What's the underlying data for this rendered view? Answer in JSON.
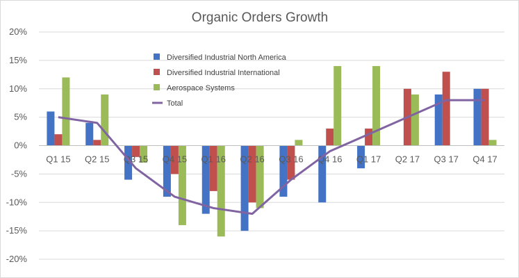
{
  "chart_data": {
    "type": "bar",
    "title": "Organic Orders Growth",
    "xlabel": "",
    "ylabel": "",
    "ylim": [
      -0.2,
      0.2
    ],
    "yticks": [
      "20%",
      "15%",
      "10%",
      "5%",
      "0%",
      "-5%",
      "-10%",
      "-15%",
      "-20%"
    ],
    "categories": [
      "Q1 15",
      "Q2 15",
      "Q3 15",
      "Q4 15",
      "Q1 16",
      "Q2 16",
      "Q3 16",
      "Q4 16",
      "Q1 17",
      "Q2 17",
      "Q3 17",
      "Q4 17"
    ],
    "series": [
      {
        "name": "Diversified Industrial North America",
        "kind": "bar",
        "color": "#4472C4",
        "values": [
          0.06,
          0.04,
          -0.06,
          -0.09,
          -0.12,
          -0.15,
          -0.09,
          -0.1,
          -0.04,
          0.0,
          0.09,
          0.1
        ]
      },
      {
        "name": "Diversified Industrial International",
        "kind": "bar",
        "color": "#C0504D",
        "values": [
          0.02,
          0.01,
          -0.02,
          -0.05,
          -0.08,
          -0.1,
          -0.06,
          0.03,
          0.03,
          0.1,
          0.13,
          0.1
        ]
      },
      {
        "name": "Aerospace Systems",
        "kind": "bar",
        "color": "#9BBB59",
        "values": [
          0.12,
          0.09,
          -0.03,
          -0.14,
          -0.16,
          -0.11,
          0.01,
          0.14,
          0.14,
          0.09,
          0.0,
          0.01
        ]
      },
      {
        "name": "Total",
        "kind": "line",
        "color": "#8064A2",
        "values": [
          0.05,
          0.04,
          -0.04,
          -0.09,
          -0.11,
          -0.12,
          -0.06,
          -0.01,
          0.02,
          0.05,
          0.08,
          0.08
        ]
      }
    ],
    "grid": true,
    "legend_position": "top-center"
  }
}
